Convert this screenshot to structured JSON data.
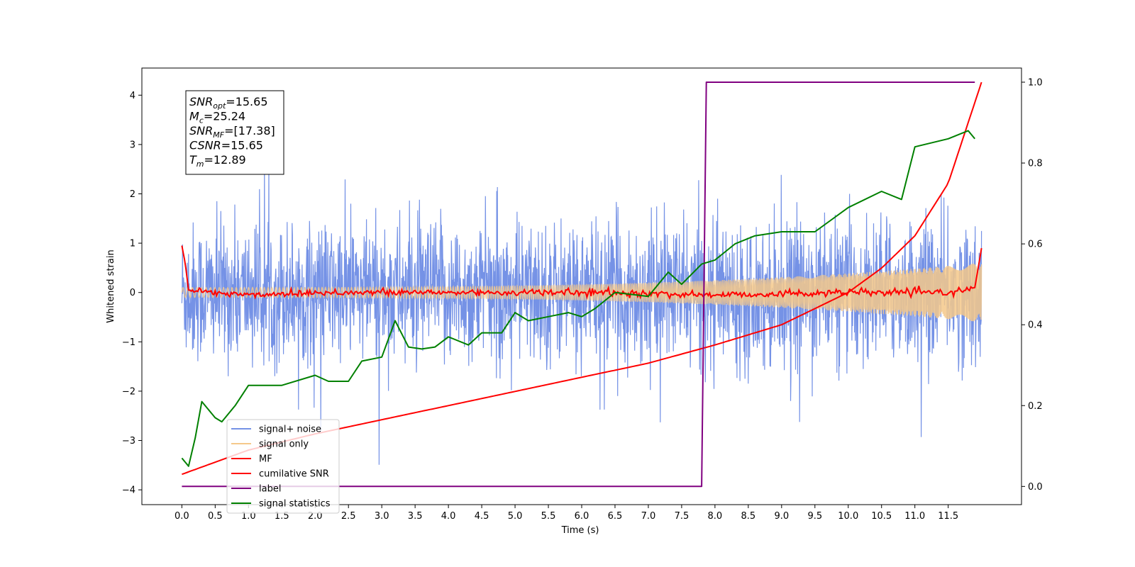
{
  "chart_data": {
    "type": "line",
    "xlabel": "Time (s)",
    "ylabel": "Whitened strain",
    "x_ticks": [
      "0.0",
      "0.5",
      "1.0",
      "1.5",
      "2.0",
      "2.5",
      "3.0",
      "3.5",
      "4.0",
      "4.5",
      "5.0",
      "5.5",
      "6.0",
      "6.5",
      "7.0",
      "7.5",
      "8.0",
      "8.5",
      "9.0",
      "9.5",
      "10.0",
      "10.5",
      "11.0",
      "11.5"
    ],
    "y_ticks": [
      "4",
      "3",
      "2",
      "1",
      "0",
      "−1",
      "−2",
      "−3",
      "−4"
    ],
    "y2_ticks": [
      "1.0",
      "0.8",
      "0.6",
      "0.4",
      "0.2",
      "0.0"
    ],
    "xlim": [
      -0.6,
      12.6
    ],
    "ylim": [
      -4.3,
      4.55
    ],
    "y2lim": [
      -0.045,
      1.035
    ],
    "legend_placement": "lower-left",
    "info_box": {
      "lines": [
        {
          "sym": "SNR",
          "sub": "opt",
          "val": "=15.65"
        },
        {
          "sym": "M",
          "sub": "c",
          "val": "=25.24"
        },
        {
          "sym": "SNR",
          "sub": "MF",
          "val": "=[17.38]"
        },
        {
          "sym": "CSNR",
          "sub": "",
          "val": "=15.65"
        },
        {
          "sym": "T",
          "sub": "m",
          "val": "=12.89"
        }
      ]
    },
    "series": [
      {
        "name": "signal+ noise",
        "color": "#7592e6",
        "axis": "left",
        "description_values": {
          "x_range": [
            0.0,
            12.0
          ],
          "y_typical_range": [
            -1.6,
            1.6
          ],
          "y_extremes": [
            -3.9,
            4.3
          ]
        }
      },
      {
        "name": "signal only",
        "color": "#f5c88a",
        "axis": "left",
        "description_values": {
          "x_range": [
            0.0,
            12.0
          ],
          "amplitude_start": 0.1,
          "amplitude_end": 0.6
        }
      },
      {
        "name": "MF",
        "color": "#ff0000",
        "axis": "left",
        "x": [
          0.0,
          0.05,
          0.1,
          0.5,
          1.0,
          2.0,
          4.0,
          6.0,
          8.0,
          10.0,
          11.5,
          11.9,
          12.0
        ],
        "y": [
          0.95,
          0.6,
          0.05,
          0.0,
          -0.05,
          0.0,
          0.0,
          0.0,
          -0.05,
          0.0,
          0.0,
          0.1,
          0.9
        ]
      },
      {
        "name": "cumilative SNR",
        "color": "#ff0000",
        "axis": "right",
        "x": [
          0.0,
          1.0,
          2.0,
          3.0,
          4.0,
          5.0,
          6.0,
          7.0,
          8.0,
          9.0,
          10.0,
          10.5,
          11.0,
          11.5,
          12.0
        ],
        "y": [
          0.03,
          0.09,
          0.13,
          0.165,
          0.2,
          0.235,
          0.27,
          0.305,
          0.35,
          0.4,
          0.48,
          0.54,
          0.62,
          0.75,
          1.0
        ]
      },
      {
        "name": "label",
        "color": "#800080",
        "axis": "right",
        "x": [
          0.0,
          7.8,
          7.87,
          11.9
        ],
        "y": [
          0.0,
          0.0,
          1.0,
          1.0
        ]
      },
      {
        "name": "signal statistics",
        "color": "#008000",
        "axis": "right",
        "x": [
          0.0,
          0.1,
          0.2,
          0.3,
          0.5,
          0.6,
          0.8,
          1.0,
          1.5,
          2.0,
          2.2,
          2.5,
          2.7,
          3.0,
          3.2,
          3.4,
          3.6,
          3.8,
          4.0,
          4.3,
          4.5,
          4.8,
          5.0,
          5.2,
          5.5,
          5.8,
          6.0,
          6.2,
          6.5,
          7.0,
          7.3,
          7.5,
          7.8,
          8.0,
          8.3,
          8.6,
          9.0,
          9.5,
          10.0,
          10.5,
          10.8,
          11.0,
          11.5,
          11.8,
          11.9
        ],
        "y": [
          0.07,
          0.05,
          0.12,
          0.21,
          0.17,
          0.16,
          0.2,
          0.25,
          0.25,
          0.275,
          0.26,
          0.26,
          0.31,
          0.32,
          0.41,
          0.345,
          0.34,
          0.345,
          0.37,
          0.35,
          0.38,
          0.38,
          0.43,
          0.41,
          0.42,
          0.43,
          0.42,
          0.44,
          0.48,
          0.47,
          0.53,
          0.5,
          0.55,
          0.56,
          0.6,
          0.62,
          0.63,
          0.63,
          0.69,
          0.73,
          0.71,
          0.84,
          0.86,
          0.88,
          0.86
        ]
      }
    ]
  }
}
